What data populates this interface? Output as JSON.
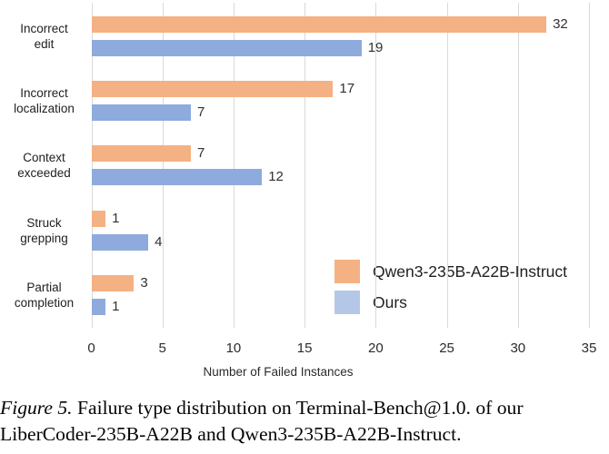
{
  "figure": {
    "caption": {
      "figure_label": "Figure 5.",
      "line1_rest": " Failure type distribution on Terminal-Bench@1.0. of our",
      "line2": "LiberCoder-235B-A22B and Qwen3-235B-A22B-Instruct."
    }
  },
  "chart_data": {
    "type": "bar",
    "orientation": "horizontal",
    "title": "",
    "xlabel": "Number of Failed Instances",
    "ylabel": "",
    "xlim": [
      0,
      35
    ],
    "xticks": [
      0,
      5,
      10,
      15,
      20,
      25,
      30,
      35
    ],
    "grid": true,
    "legend_position": "inside-lower-right",
    "categories": [
      "Incorrect\nedit",
      "Incorrect\nlocalization",
      "Context\nexceeded",
      "Struck\ngrepping",
      "Partial\ncompletion"
    ],
    "series": [
      {
        "name": "Qwen3-235B-A22B-Instruct",
        "color": "#F4B183",
        "legend_color": "#F4B183",
        "values": [
          32,
          17,
          7,
          1,
          3
        ]
      },
      {
        "name": "Ours",
        "color": "#8FAADC",
        "legend_color": "#B4C7E7",
        "values": [
          19,
          7,
          12,
          4,
          1
        ]
      }
    ],
    "colors": {
      "gridline": "#D9D9D9",
      "axis_text": "#2b2b2b",
      "value_text": "#303030"
    }
  }
}
